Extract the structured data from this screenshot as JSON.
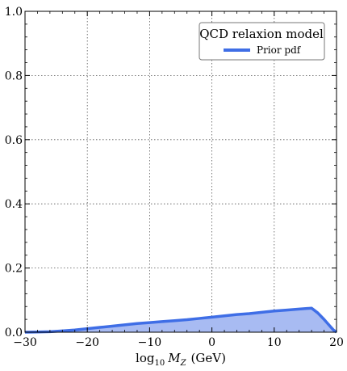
{
  "chart_data": {
    "type": "area",
    "xlabel": "log10 M_Z (GeV)",
    "xlabel_parts": {
      "base": "log",
      "sub": "10",
      "var": "M",
      "var_sub": "Z",
      "unit": "(GeV)"
    },
    "ylabel": "",
    "xlim": [
      -30,
      20
    ],
    "ylim": [
      0.0,
      1.0
    ],
    "x_ticks": [
      -30,
      -20,
      -10,
      0,
      10,
      20
    ],
    "x_tick_labels": [
      "−30",
      "−20",
      "−10",
      "0",
      "10",
      "20"
    ],
    "y_ticks": [
      0.0,
      0.2,
      0.4,
      0.6,
      0.8,
      1.0
    ],
    "y_tick_labels": [
      "0.0",
      "0.2",
      "0.4",
      "0.6",
      "0.8",
      "1.0"
    ],
    "grid": true,
    "legend_title": "QCD relaxion model",
    "legend_position": "top-right",
    "series": [
      {
        "name": "Prior pdf",
        "color": "#3f6ee6",
        "fill_color": "#a8bbf2",
        "x": [
          -30,
          -28,
          -26,
          -24,
          -22,
          -20,
          -18,
          -16,
          -14,
          -12,
          -10,
          -8,
          -6,
          -4,
          -2,
          0,
          2,
          4,
          6,
          8,
          10,
          12,
          14,
          16,
          17,
          18,
          19,
          19.5,
          20
        ],
        "y": [
          0.0,
          0.0005,
          0.0015,
          0.004,
          0.007,
          0.011,
          0.015,
          0.019,
          0.023,
          0.027,
          0.03,
          0.033,
          0.036,
          0.039,
          0.043,
          0.047,
          0.051,
          0.055,
          0.058,
          0.062,
          0.066,
          0.069,
          0.072,
          0.075,
          0.06,
          0.04,
          0.018,
          0.007,
          0.0
        ]
      }
    ]
  }
}
